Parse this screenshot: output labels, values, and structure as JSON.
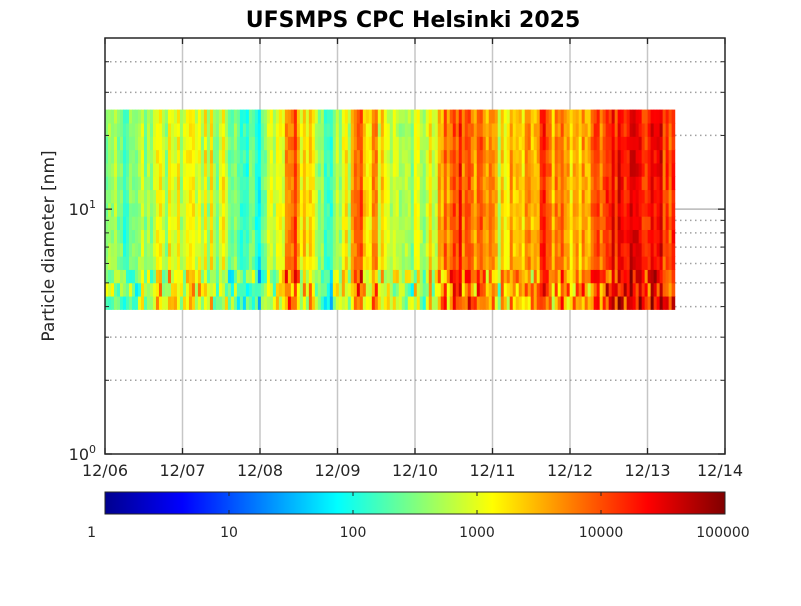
{
  "chart_data": {
    "type": "heatmap",
    "title": "UFSMPS CPC Helsinki 2025",
    "xlabel": "",
    "ylabel": "Particle diameter [nm]",
    "x_ticks": [
      "12/06",
      "12/07",
      "12/08",
      "12/09",
      "12/10",
      "12/11",
      "12/12",
      "12/13",
      "12/14"
    ],
    "x_range": [
      "12/06",
      "12/14"
    ],
    "y_scale": "log",
    "y_range": [
      1,
      50
    ],
    "y_tick_labels": [
      {
        "value": 1,
        "base": "10",
        "exp": "0"
      },
      {
        "value": 10,
        "base": "10",
        "exp": "1"
      }
    ],
    "data_extent": {
      "x_start": "12/06",
      "x_end": "12/13 ~08:00",
      "d_min_nm": 3.9,
      "d_max_nm": 25.5
    },
    "grid": true,
    "colormap": "jet",
    "color_scale": "log",
    "color_range": [
      1,
      100000
    ],
    "colorbar_ticks": [
      "1",
      "10",
      "100",
      "1000",
      "10000",
      "100000"
    ],
    "colorbar_placement": "bottom",
    "colors": {
      "grid": "#b8b8b8",
      "axes": "#262626",
      "title": "#000000"
    },
    "intensity_profile_log10": [
      {
        "day": 0.0,
        "log10_conc": 2.3
      },
      {
        "day": 0.5,
        "log10_conc": 2.8
      },
      {
        "day": 1.0,
        "log10_conc": 2.9
      },
      {
        "day": 1.5,
        "log10_conc": 2.9
      },
      {
        "day": 2.0,
        "log10_conc": 2.2
      },
      {
        "day": 2.4,
        "log10_conc": 3.8
      },
      {
        "day": 2.9,
        "log10_conc": 2.3
      },
      {
        "day": 3.3,
        "log10_conc": 3.7
      },
      {
        "day": 3.8,
        "log10_conc": 2.8
      },
      {
        "day": 4.1,
        "log10_conc": 2.9
      },
      {
        "day": 4.6,
        "log10_conc": 4.1
      },
      {
        "day": 5.1,
        "log10_conc": 3.1
      },
      {
        "day": 5.6,
        "log10_conc": 3.9
      },
      {
        "day": 6.1,
        "log10_conc": 3.4
      },
      {
        "day": 6.6,
        "log10_conc": 4.2
      },
      {
        "day": 7.0,
        "log10_conc": 4.4
      },
      {
        "day": 7.35,
        "log10_conc": 3.9
      }
    ]
  }
}
